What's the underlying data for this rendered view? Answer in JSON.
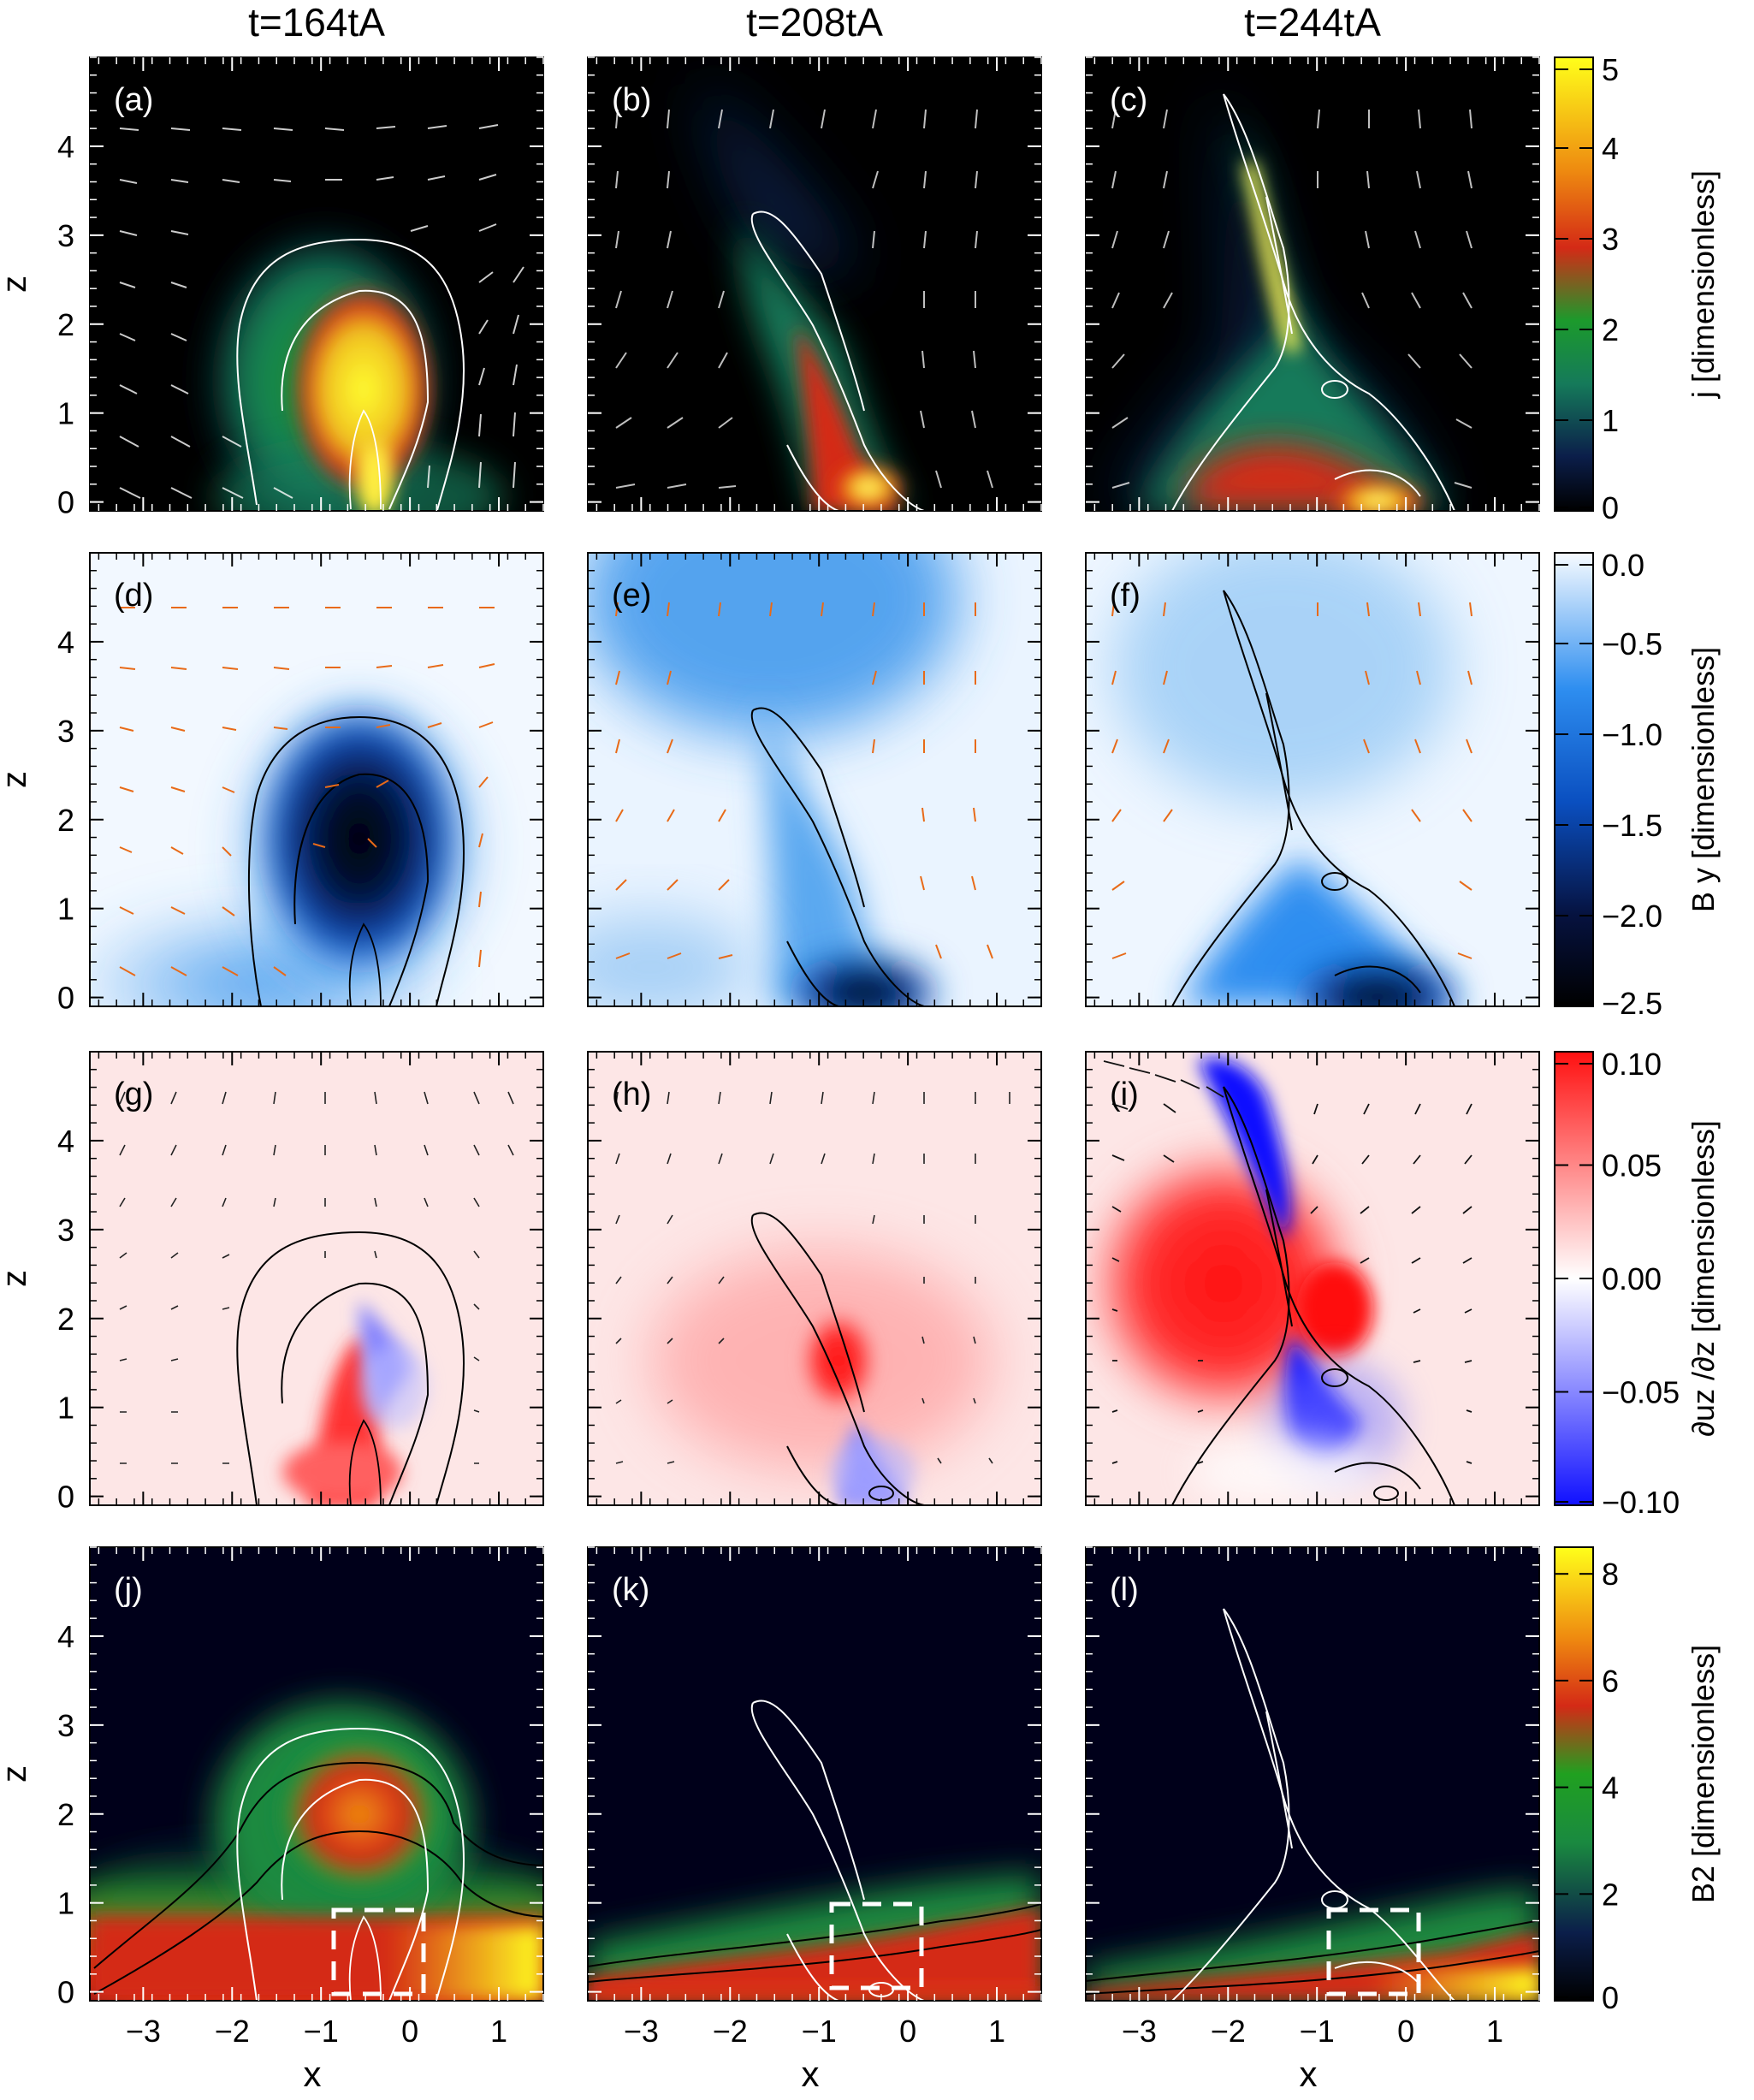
{
  "chart_data": {
    "type": "heatmap",
    "columns": [
      {
        "title": "t=164tA"
      },
      {
        "title": "t=208tA"
      },
      {
        "title": "t=244tA"
      }
    ],
    "rows": [
      {
        "quantity": "j",
        "colorbar_label": "j [dimensionless]",
        "colorbar_ticks": [
          "0",
          "1",
          "2",
          "3",
          "4",
          "5"
        ],
        "range": [
          0,
          5
        ],
        "colormap": "black-blue-green-red-yellow",
        "panels": [
          "(a)",
          "(b)",
          "(c)"
        ]
      },
      {
        "quantity": "By",
        "colorbar_label": "B y [dimensionless]",
        "colorbar_ticks": [
          "0.0",
          "−0.5",
          "−1.0",
          "−1.5",
          "−2.0",
          "−2.5"
        ],
        "range": [
          -2.5,
          0
        ],
        "colormap": "white-blue-black",
        "panels": [
          "(d)",
          "(e)",
          "(f)"
        ]
      },
      {
        "quantity": "duz/dz",
        "colorbar_label": "∂uz /∂z [dimensionless]",
        "colorbar_ticks": [
          "0.10",
          "0.05",
          "0.00",
          "−0.05",
          "−0.10"
        ],
        "range": [
          -0.1,
          0.1
        ],
        "colormap": "blue-white-red",
        "panels": [
          "(g)",
          "(h)",
          "(i)"
        ]
      },
      {
        "quantity": "B^2",
        "colorbar_label": "B2 [dimensionless]",
        "colorbar_ticks": [
          "8",
          "6",
          "4",
          "2",
          "0"
        ],
        "range": [
          0,
          8.5
        ],
        "colormap": "black-blue-green-red-yellow",
        "panels": [
          "(j)",
          "(k)",
          "(l)"
        ]
      }
    ],
    "xlabel": "x",
    "ylabel": "z",
    "x_ticks": [
      "−3",
      "−2",
      "−1",
      "0",
      "1"
    ],
    "z_ticks": [
      "0",
      "1",
      "2",
      "3",
      "4"
    ],
    "xlim": [
      -3.6,
      1.5
    ],
    "zlim": [
      -0.1,
      5.0
    ]
  }
}
